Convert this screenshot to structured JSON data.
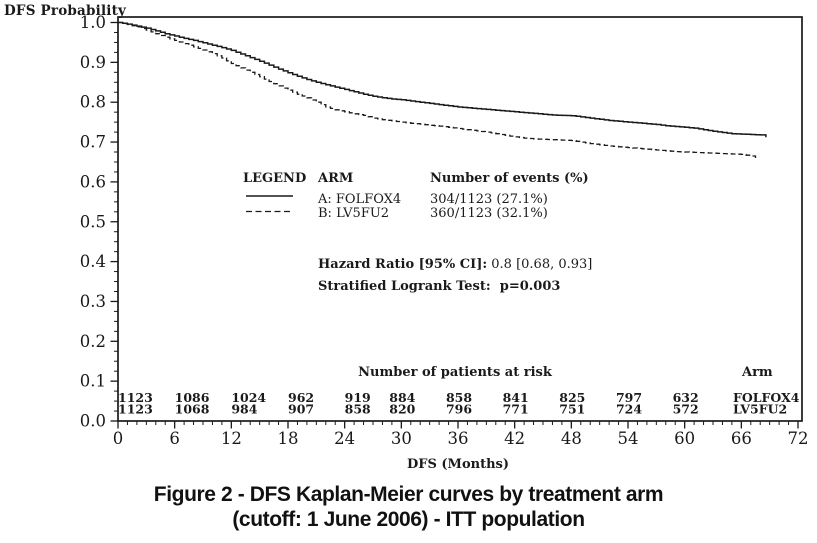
{
  "colors": {
    "ink": "#1a1a1a",
    "background": "#ffffff"
  },
  "figure": {
    "y_axis_title": "DFS Probability",
    "caption_line1": "Figure 2 - DFS Kaplan-Meier curves by treatment arm",
    "caption_line2": "(cutoff: 1 June 2006) - ITT population"
  },
  "chart_data": {
    "type": "line",
    "subtype": "kaplan_meier_step",
    "xlabel": "DFS (Months)",
    "ylabel": "DFS Probability",
    "xlim": [
      0,
      72
    ],
    "ylim": [
      0.0,
      1.0
    ],
    "xticks": [
      0,
      6,
      12,
      18,
      24,
      30,
      36,
      42,
      48,
      54,
      60,
      66,
      72
    ],
    "x_minor_step": 1,
    "yticks": [
      0.0,
      0.1,
      0.2,
      0.3,
      0.4,
      0.5,
      0.6,
      0.7,
      0.8,
      0.9,
      1.0
    ],
    "y_minor_step": 0.025,
    "grid": false,
    "legend": {
      "position": "inside-center",
      "header_legend": "LEGEND",
      "header_arm": "ARM",
      "header_events": "Number of events (%)",
      "entries": [
        {
          "arm": "A: FOLFOX4",
          "events": "304/1123  (27.1%)",
          "line_style": "solid"
        },
        {
          "arm": "B: LV5FU2",
          "events": "360/1123  (32.1%)",
          "line_style": "dashed"
        }
      ]
    },
    "annotations": {
      "hazard_ratio_label": "Hazard Ratio [95% CI]:",
      "hazard_ratio_value": "0.8 [0.68, 0.93]",
      "logrank_label": "Stratified Logrank Test:",
      "logrank_value": "p=0.003"
    },
    "series": [
      {
        "name": "FOLFOX4",
        "line_style": "solid",
        "points": [
          [
            0,
            1.0
          ],
          [
            1,
            0.996
          ],
          [
            2,
            0.991
          ],
          [
            3,
            0.986
          ],
          [
            4,
            0.979
          ],
          [
            5,
            0.972
          ],
          [
            6,
            0.966
          ],
          [
            7,
            0.96
          ],
          [
            8,
            0.955
          ],
          [
            9,
            0.949
          ],
          [
            10,
            0.943
          ],
          [
            11,
            0.937
          ],
          [
            12,
            0.93
          ],
          [
            13,
            0.921
          ],
          [
            14,
            0.912
          ],
          [
            15,
            0.903
          ],
          [
            16,
            0.893
          ],
          [
            17,
            0.883
          ],
          [
            18,
            0.874
          ],
          [
            19,
            0.865
          ],
          [
            20,
            0.857
          ],
          [
            21,
            0.85
          ],
          [
            22,
            0.844
          ],
          [
            23,
            0.838
          ],
          [
            24,
            0.832
          ],
          [
            25,
            0.826
          ],
          [
            26,
            0.82
          ],
          [
            27,
            0.815
          ],
          [
            28,
            0.811
          ],
          [
            29,
            0.808
          ],
          [
            30,
            0.806
          ],
          [
            31,
            0.803
          ],
          [
            32,
            0.8
          ],
          [
            33,
            0.797
          ],
          [
            34,
            0.794
          ],
          [
            35,
            0.791
          ],
          [
            36,
            0.788
          ],
          [
            37,
            0.786
          ],
          [
            38,
            0.784
          ],
          [
            39,
            0.782
          ],
          [
            40,
            0.78
          ],
          [
            41,
            0.778
          ],
          [
            42,
            0.776
          ],
          [
            43,
            0.774
          ],
          [
            44,
            0.772
          ],
          [
            45,
            0.77
          ],
          [
            46,
            0.768
          ],
          [
            47,
            0.767
          ],
          [
            48,
            0.766
          ],
          [
            49,
            0.763
          ],
          [
            50,
            0.76
          ],
          [
            51,
            0.757
          ],
          [
            52,
            0.754
          ],
          [
            53,
            0.752
          ],
          [
            54,
            0.75
          ],
          [
            55,
            0.748
          ],
          [
            56,
            0.746
          ],
          [
            57,
            0.744
          ],
          [
            58,
            0.741
          ],
          [
            59,
            0.739
          ],
          [
            60,
            0.737
          ],
          [
            61,
            0.735
          ],
          [
            62,
            0.731
          ],
          [
            63,
            0.727
          ],
          [
            64,
            0.724
          ],
          [
            65,
            0.721
          ],
          [
            66,
            0.72
          ],
          [
            67,
            0.719
          ],
          [
            68,
            0.718
          ],
          [
            68.6,
            0.712
          ]
        ]
      },
      {
        "name": "LV5FU2",
        "line_style": "dashed",
        "points": [
          [
            0,
            1.0
          ],
          [
            1,
            0.995
          ],
          [
            2,
            0.989
          ],
          [
            3,
            0.981
          ],
          [
            4,
            0.972
          ],
          [
            5,
            0.963
          ],
          [
            6,
            0.955
          ],
          [
            7,
            0.947
          ],
          [
            8,
            0.939
          ],
          [
            9,
            0.931
          ],
          [
            10,
            0.922
          ],
          [
            11,
            0.911
          ],
          [
            12,
            0.897
          ],
          [
            13,
            0.886
          ],
          [
            14,
            0.875
          ],
          [
            15,
            0.864
          ],
          [
            16,
            0.852
          ],
          [
            17,
            0.841
          ],
          [
            18,
            0.83
          ],
          [
            19,
            0.82
          ],
          [
            20,
            0.811
          ],
          [
            21,
            0.8
          ],
          [
            22,
            0.788
          ],
          [
            23,
            0.781
          ],
          [
            24,
            0.776
          ],
          [
            25,
            0.771
          ],
          [
            26,
            0.767
          ],
          [
            27,
            0.76
          ],
          [
            28,
            0.756
          ],
          [
            29,
            0.753
          ],
          [
            30,
            0.75
          ],
          [
            31,
            0.747
          ],
          [
            32,
            0.745
          ],
          [
            33,
            0.742
          ],
          [
            34,
            0.74
          ],
          [
            35,
            0.737
          ],
          [
            36,
            0.734
          ],
          [
            37,
            0.731
          ],
          [
            38,
            0.728
          ],
          [
            39,
            0.725
          ],
          [
            40,
            0.721
          ],
          [
            41,
            0.717
          ],
          [
            42,
            0.713
          ],
          [
            43,
            0.71
          ],
          [
            44,
            0.708
          ],
          [
            45,
            0.707
          ],
          [
            46,
            0.706
          ],
          [
            47,
            0.705
          ],
          [
            48,
            0.704
          ],
          [
            49,
            0.7
          ],
          [
            50,
            0.696
          ],
          [
            51,
            0.693
          ],
          [
            52,
            0.69
          ],
          [
            53,
            0.688
          ],
          [
            54,
            0.686
          ],
          [
            55,
            0.684
          ],
          [
            56,
            0.682
          ],
          [
            57,
            0.68
          ],
          [
            58,
            0.678
          ],
          [
            59,
            0.676
          ],
          [
            60,
            0.675
          ],
          [
            61,
            0.674
          ],
          [
            62,
            0.673
          ],
          [
            63,
            0.672
          ],
          [
            64,
            0.671
          ],
          [
            65,
            0.67
          ],
          [
            66,
            0.669
          ],
          [
            67,
            0.665
          ],
          [
            67.5,
            0.66
          ]
        ]
      }
    ],
    "risk_table": {
      "title": "Number of patients at risk",
      "arm_header": "Arm",
      "months": [
        0,
        6,
        12,
        18,
        24,
        30,
        36,
        42,
        48,
        54,
        60
      ],
      "rows": [
        {
          "arm": "FOLFOX4",
          "counts": [
            1123,
            1086,
            1024,
            962,
            919,
            884,
            858,
            841,
            825,
            797,
            632
          ]
        },
        {
          "arm": "LV5FU2",
          "counts": [
            1123,
            1068,
            984,
            907,
            858,
            820,
            796,
            771,
            751,
            724,
            572
          ]
        }
      ]
    }
  }
}
